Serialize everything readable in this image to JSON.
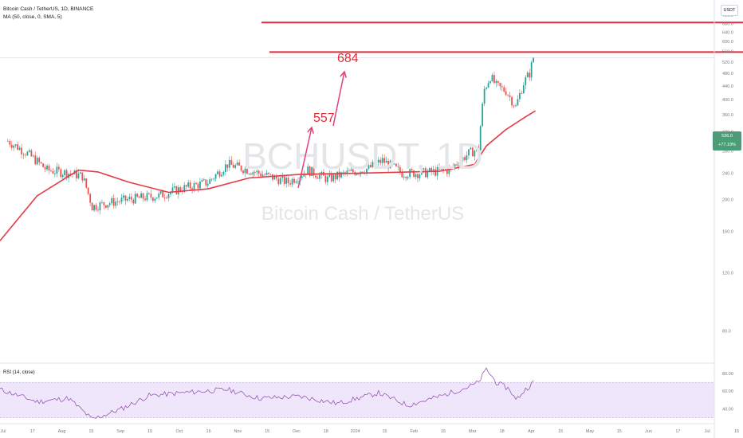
{
  "header": {
    "title": "Bitcoin Cash / TetherUS, 1D, BINANCE",
    "indicator": "MA (50, close, 0, SMA, 5)",
    "rsi_label": "RSI (14, close)"
  },
  "currency_badge": "USDT",
  "watermark": {
    "symbol": "BCHUSDT, 1D",
    "name": "Bitcoin Cash / TetherUS"
  },
  "price_tag": {
    "price": "536.0",
    "change": "+77.19%"
  },
  "annotations": {
    "level_low": "557",
    "level_high": "684"
  },
  "colors": {
    "up": "#26a69a",
    "down": "#ef5350",
    "ma": "#e63946",
    "level_lines": "#e02b3a",
    "arrows": "#e63e7e",
    "rsi_line": "#8e44ad",
    "rsi_band": "#f0e6fb",
    "price_tag_bg": "#4c9c77"
  },
  "chart_data": [
    {
      "type": "candlestick",
      "title": "Bitcoin Cash / TetherUS, 1D, BINANCE",
      "x_tick_labels": [
        "Jul",
        "17",
        "Aug",
        "15",
        "Sep",
        "15",
        "Oct",
        "16",
        "Nov",
        "15",
        "Dec",
        "18",
        "2024",
        "15",
        "Feb",
        "15",
        "Mar",
        "18",
        "Apr",
        "15",
        "May",
        "15",
        "Jun",
        "17",
        "Jul",
        "15"
      ],
      "y_tick_labels": [
        "80.0",
        "120.0",
        "160.0",
        "200.0",
        "240.0",
        "280.0",
        "320.0",
        "360.0",
        "400.0",
        "440.0",
        "480.0",
        "520.0",
        "560.0",
        "600.0",
        "640.0",
        "680.0",
        "720.0",
        "760.0"
      ],
      "ylim": [
        64,
        800
      ],
      "scale": "log",
      "series": [
        {
          "name": "BCHUSDT",
          "close_points": [
            [
              "2023-07-05",
              300
            ],
            [
              "2023-07-15",
              275
            ],
            [
              "2023-07-25",
              245
            ],
            [
              "2023-08-05",
              240
            ],
            [
              "2023-08-12",
              235
            ],
            [
              "2023-08-17",
              190
            ],
            [
              "2023-08-25",
              195
            ],
            [
              "2023-09-05",
              200
            ],
            [
              "2023-09-20",
              205
            ],
            [
              "2023-10-01",
              215
            ],
            [
              "2023-10-15",
              225
            ],
            [
              "2023-10-25",
              255
            ],
            [
              "2023-11-05",
              245
            ],
            [
              "2023-11-15",
              235
            ],
            [
              "2023-11-25",
              225
            ],
            [
              "2023-12-05",
              245
            ],
            [
              "2023-12-15",
              230
            ],
            [
              "2023-12-25",
              240
            ],
            [
              "2024-01-05",
              248
            ],
            [
              "2024-01-12",
              262
            ],
            [
              "2024-01-22",
              240
            ],
            [
              "2024-02-01",
              240
            ],
            [
              "2024-02-15",
              245
            ],
            [
              "2024-02-25",
              275
            ],
            [
              "2024-03-01",
              285
            ],
            [
              "2024-03-04",
              430
            ],
            [
              "2024-03-07",
              470
            ],
            [
              "2024-03-10",
              440
            ],
            [
              "2024-03-15",
              425
            ],
            [
              "2024-03-20",
              380
            ],
            [
              "2024-03-24",
              450
            ],
            [
              "2024-03-27",
              480
            ],
            [
              "2024-03-29",
              536
            ]
          ]
        },
        {
          "name": "MA (50, close, 0, SMA, 5)",
          "points": [
            [
              "2023-07-01",
              150
            ],
            [
              "2023-07-20",
              205
            ],
            [
              "2023-08-10",
              245
            ],
            [
              "2023-08-20",
              242
            ],
            [
              "2023-09-05",
              225
            ],
            [
              "2023-09-25",
              210
            ],
            [
              "2023-10-15",
              215
            ],
            [
              "2023-11-05",
              232
            ],
            [
              "2023-12-01",
              238
            ],
            [
              "2024-01-01",
              240
            ],
            [
              "2024-02-10",
              243
            ],
            [
              "2024-02-28",
              255
            ],
            [
              "2024-03-05",
              290
            ],
            [
              "2024-03-15",
              325
            ],
            [
              "2024-03-25",
              355
            ],
            [
              "2024-03-30",
              370
            ]
          ]
        }
      ],
      "horizontal_levels": [
        557,
        684
      ],
      "last_price": 536.0,
      "change_pct": "+77.19%"
    },
    {
      "type": "line",
      "title": "RSI (14, close)",
      "y_tick_labels": [
        "40.00",
        "60.00",
        "80.00"
      ],
      "ylim": [
        25,
        90
      ],
      "band": [
        30,
        70
      ],
      "series": [
        {
          "name": "RSI",
          "points": [
            [
              "2023-07-01",
              62
            ],
            [
              "2023-07-20",
              48
            ],
            [
              "2023-08-05",
              52
            ],
            [
              "2023-08-17",
              28
            ],
            [
              "2023-09-01",
              40
            ],
            [
              "2023-09-15",
              55
            ],
            [
              "2023-10-01",
              58
            ],
            [
              "2023-10-25",
              62
            ],
            [
              "2023-11-10",
              52
            ],
            [
              "2023-12-01",
              54
            ],
            [
              "2023-12-20",
              46
            ],
            [
              "2024-01-10",
              58
            ],
            [
              "2024-01-25",
              44
            ],
            [
              "2024-02-10",
              54
            ],
            [
              "2024-02-25",
              65
            ],
            [
              "2024-03-01",
              70
            ],
            [
              "2024-03-05",
              85
            ],
            [
              "2024-03-10",
              70
            ],
            [
              "2024-03-17",
              62
            ],
            [
              "2024-03-20",
              50
            ],
            [
              "2024-03-25",
              62
            ],
            [
              "2024-03-29",
              70
            ]
          ]
        }
      ]
    }
  ]
}
